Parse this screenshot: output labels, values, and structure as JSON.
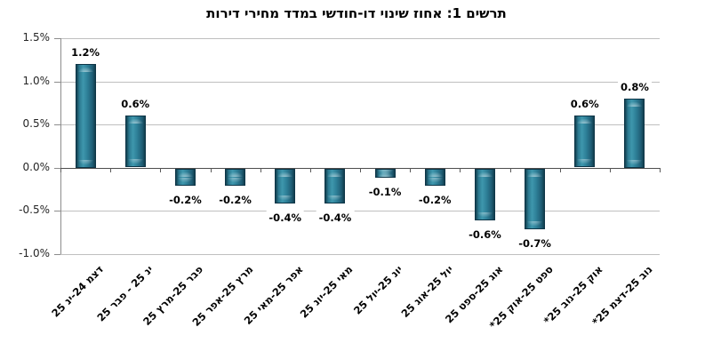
{
  "title": "תרשים 1: אחוז שינוי דו-חודשי במדד מחירי דירות",
  "chart_data": {
    "type": "bar",
    "title": "תרשים 1: אחוז שינוי דו-חודשי במדד מחירי דירות",
    "categories": [
      "דצמ 24-ינ 25",
      "ינ 25 - פבר 25",
      "פבר 25-מרץ 25",
      "מרץ 25-אפר 25",
      "אפר 25-מאי 25",
      "מאי 25-יונ 25",
      "יונ 25-יול 25",
      "יול 25-אוג 25",
      "אוג 25-ספט 25",
      "ספט 25-אוק 25*",
      "אוק 25-נוב 25*",
      "נוב 25-דצמ 25*"
    ],
    "values": [
      1.2,
      0.6,
      -0.2,
      -0.2,
      -0.4,
      -0.4,
      -0.1,
      -0.2,
      -0.6,
      -0.7,
      0.6,
      0.8
    ],
    "labels": [
      "1.2%",
      "0.6%",
      "-0.2%",
      "-0.2%",
      "-0.4%",
      "-0.4%",
      "-0.1%",
      "-0.2%",
      "-0.6%",
      "-0.7%",
      "0.6%",
      "0.8%"
    ],
    "xlabel": "",
    "ylabel": "",
    "y_ticks": [
      "1.5%",
      "1.0%",
      "0.5%",
      "0.0%",
      "-0.5%",
      "-1.0%"
    ],
    "ylim": [
      -1.0,
      1.5
    ],
    "grid": true,
    "legend": "none",
    "x_label_rotation_deg": -45,
    "direction": "rtl",
    "colors": {
      "bar_main": "#2E8098",
      "bar_highlight": "#3E97AD",
      "bar_edge": "#0D3547",
      "gridline": "#BFBFBF",
      "zero_line": "#4D4D4D",
      "axis_line": "#8C8C8C",
      "text": "#000000"
    }
  }
}
